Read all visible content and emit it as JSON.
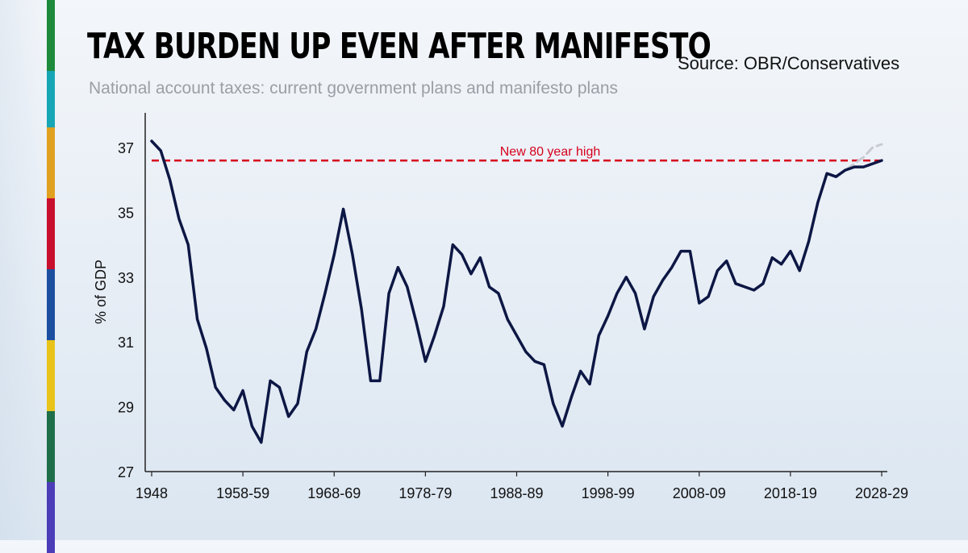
{
  "header": {
    "title": "TAX BURDEN UP EVEN AFTER MANIFESTO",
    "source": "Source: OBR/Conservatives",
    "subtitle": "National account taxes: current government plans and manifesto plans"
  },
  "colors": {
    "line": "#0d1744",
    "manifesto": "#c8ccd2",
    "reference": "#d6001c",
    "axis": "#222222",
    "brand_bar": [
      "#1e8a3c",
      "#17a6b5",
      "#e0a020",
      "#c8102e",
      "#1c4fa0",
      "#e8c41a",
      "#1f6e4a",
      "#4b3db8"
    ]
  },
  "chart_data": {
    "type": "line",
    "title": "TAX BURDEN UP EVEN AFTER MANIFESTO",
    "subtitle": "National account taxes: current government plans and manifesto plans",
    "xlabel": "",
    "ylabel": "% of GDP",
    "ylim": [
      27,
      38
    ],
    "yticks": [
      27,
      29,
      31,
      33,
      35,
      37
    ],
    "xticks": [
      {
        "x": 0,
        "label": "1948"
      },
      {
        "x": 10,
        "label": "1958-59"
      },
      {
        "x": 20,
        "label": "1968-69"
      },
      {
        "x": 30,
        "label": "1978-79"
      },
      {
        "x": 40,
        "label": "1988-89"
      },
      {
        "x": 50,
        "label": "1998-99"
      },
      {
        "x": 60,
        "label": "2008-09"
      },
      {
        "x": 70,
        "label": "2018-19"
      },
      {
        "x": 80,
        "label": "2028-29"
      }
    ],
    "grid": false,
    "series": [
      {
        "name": "Current government plans",
        "style": "solid",
        "x": [
          0,
          1,
          2,
          3,
          4,
          5,
          6,
          7,
          8,
          9,
          10,
          11,
          12,
          13,
          14,
          15,
          16,
          17,
          18,
          19,
          20,
          21,
          22,
          23,
          24,
          25,
          26,
          27,
          28,
          29,
          30,
          31,
          32,
          33,
          34,
          35,
          36,
          37,
          38,
          39,
          40,
          41,
          42,
          43,
          44,
          45,
          46,
          47,
          48,
          49,
          50,
          51,
          52,
          53,
          54,
          55,
          56,
          57,
          58,
          59,
          60,
          61,
          62,
          63,
          64,
          65,
          66,
          67,
          68,
          69,
          70,
          71,
          72,
          73,
          74,
          75,
          76,
          77,
          78,
          79,
          80
        ],
        "values": [
          37.2,
          36.9,
          36.0,
          34.8,
          34.0,
          31.7,
          30.8,
          29.6,
          29.2,
          28.9,
          29.5,
          28.4,
          27.9,
          29.8,
          29.6,
          28.7,
          29.1,
          30.7,
          31.4,
          32.5,
          33.7,
          35.1,
          33.7,
          32.0,
          29.8,
          29.8,
          32.5,
          33.3,
          32.7,
          31.6,
          30.4,
          31.2,
          32.1,
          34.0,
          33.7,
          33.1,
          33.6,
          32.7,
          32.5,
          31.7,
          31.2,
          30.7,
          30.4,
          30.3,
          29.1,
          28.4,
          29.3,
          30.1,
          29.7,
          31.2,
          31.8,
          32.5,
          33.0,
          32.5,
          31.4,
          32.4,
          32.9,
          33.3,
          33.8,
          33.8,
          32.2,
          32.4,
          33.2,
          33.5,
          32.8,
          32.7,
          32.6,
          32.8,
          33.6,
          33.4,
          33.8,
          33.2,
          34.1,
          35.3,
          36.2,
          36.1,
          36.3,
          36.4,
          36.4,
          36.5,
          36.6
        ]
      },
      {
        "name": "Manifesto plans",
        "style": "dashed",
        "x": [
          75,
          76,
          77,
          78,
          79,
          80
        ],
        "values": [
          36.1,
          36.3,
          36.5,
          36.7,
          37.0,
          37.1
        ]
      }
    ],
    "reference_line": {
      "y": 36.6,
      "x_start": 0,
      "x_end": 80,
      "label": "New 80 year high"
    }
  }
}
